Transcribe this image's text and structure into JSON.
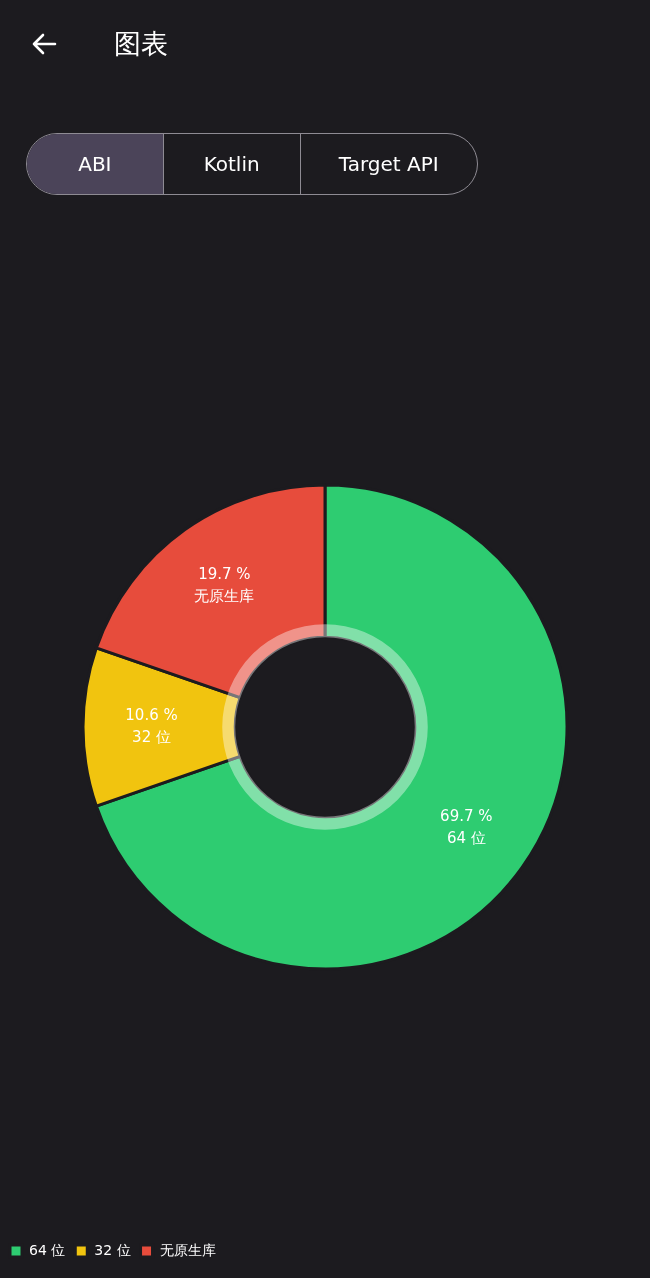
{
  "chart_data": {
    "type": "donut",
    "title": "图表",
    "annotations": [
      "ABI",
      "Kotlin",
      "Target API"
    ],
    "categories": [
      "64 位",
      "32 位",
      "无原生库"
    ],
    "values": [
      69.7,
      10.6,
      19.7
    ],
    "colors": [
      "#2ecc71",
      "#f1c40f",
      "#e74c3c"
    ],
    "value_labels": [
      "69.7 %",
      "10.6 %",
      "19.7 %"
    ],
    "legend": "bottom left"
  }
}
